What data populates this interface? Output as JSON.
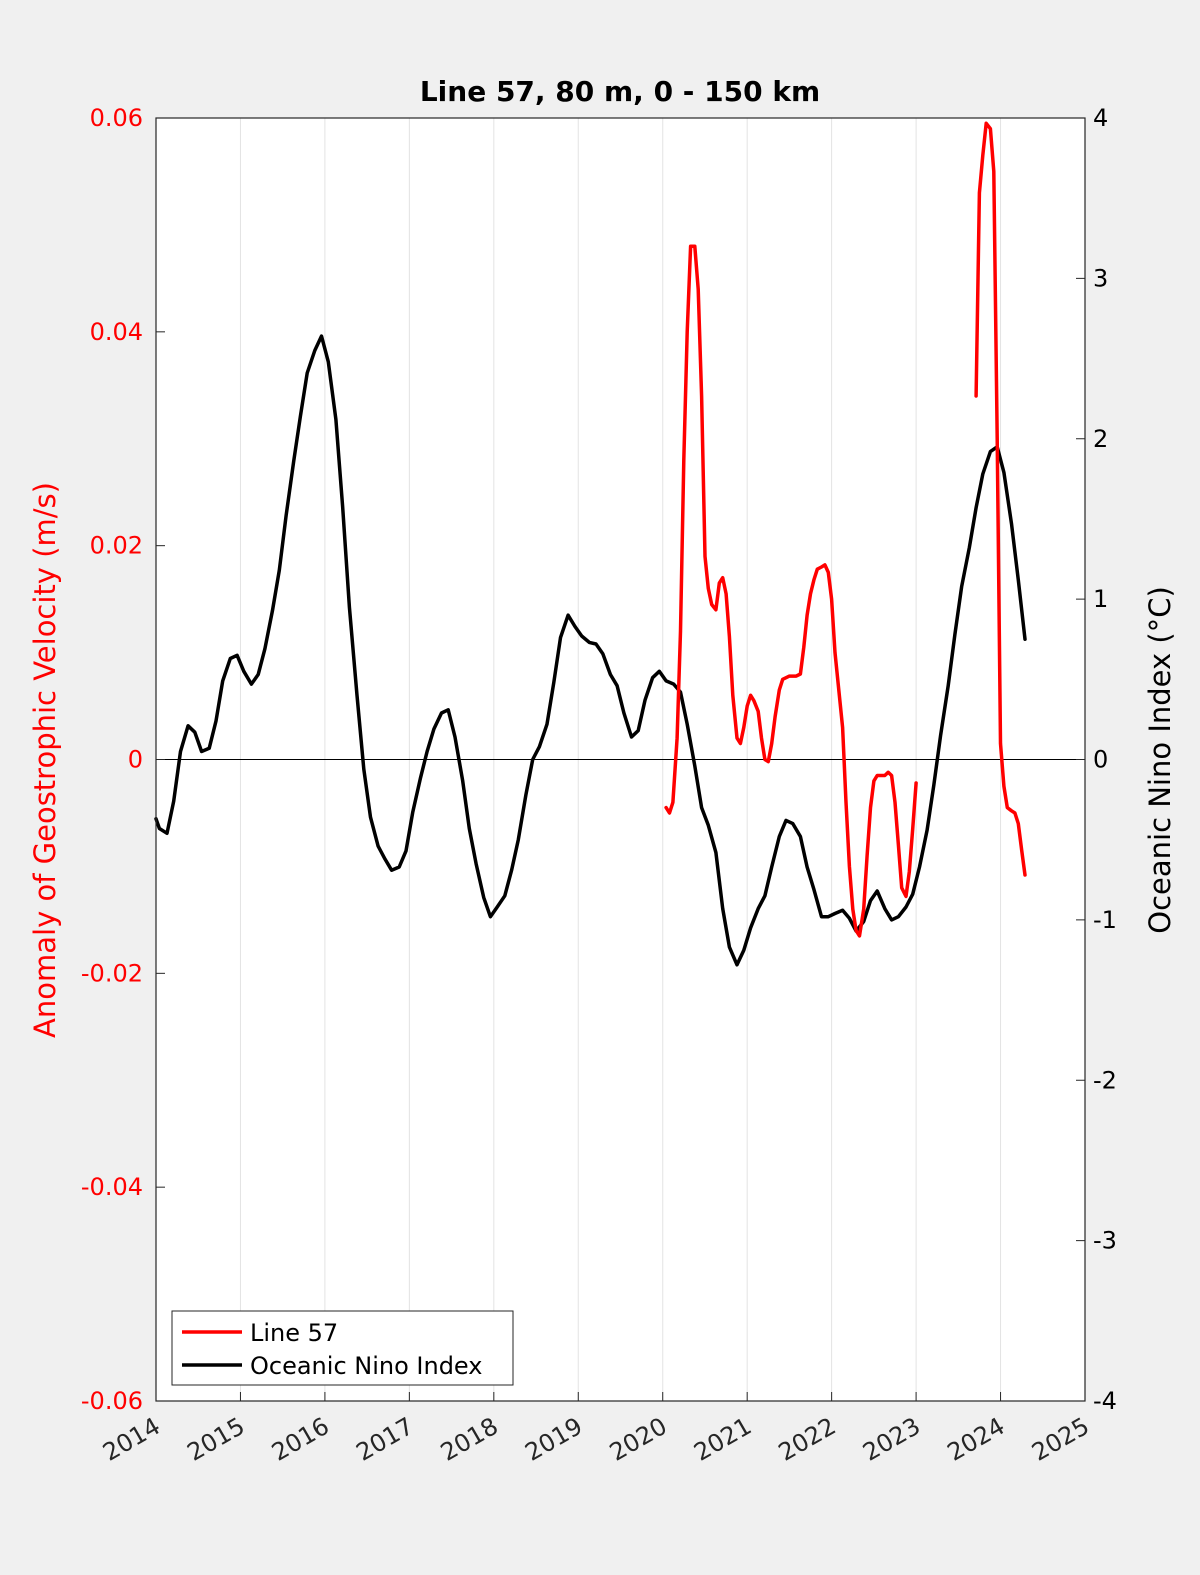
{
  "chart_data": {
    "type": "line",
    "title": "Line 57, 80 m, 0 - 150 km",
    "xlabel": "",
    "ylabel_left": "Anomaly of Geostrophic Velocity (m/s)",
    "ylabel_right": "Oceanic Nino Index (°C)",
    "xlim": [
      2014,
      2025
    ],
    "ylim_left": [
      -0.06,
      0.06
    ],
    "ylim_right": [
      -4,
      4
    ],
    "x_ticks": [
      "2014",
      "2015",
      "2016",
      "2017",
      "2018",
      "2019",
      "2020",
      "2021",
      "2022",
      "2023",
      "2024",
      "2025"
    ],
    "y_ticks_left": [
      "-0.06",
      "-0.04",
      "-0.02",
      "0",
      "0.02",
      "0.04",
      "0.06"
    ],
    "y_ticks_right": [
      "-4",
      "-3",
      "-2",
      "-1",
      "0",
      "1",
      "2",
      "3",
      "4"
    ],
    "grid": "vertical",
    "legend_position": "bottom-left",
    "colors": {
      "line57": "#ff0000",
      "oni": "#000000",
      "left_axis": "#ff0000",
      "right_axis": "#000000"
    },
    "series": [
      {
        "name": "Line 57",
        "axis": "left",
        "segments": [
          [
            [
              2020.04,
              -0.0045
            ],
            [
              2020.08,
              -0.005
            ],
            [
              2020.12,
              -0.004
            ],
            [
              2020.17,
              0.002
            ],
            [
              2020.21,
              0.012
            ],
            [
              2020.25,
              0.028
            ],
            [
              2020.29,
              0.04
            ],
            [
              2020.33,
              0.048
            ],
            [
              2020.38,
              0.048
            ],
            [
              2020.42,
              0.044
            ],
            [
              2020.46,
              0.034
            ],
            [
              2020.5,
              0.019
            ],
            [
              2020.54,
              0.016
            ],
            [
              2020.58,
              0.0145
            ],
            [
              2020.63,
              0.014
            ],
            [
              2020.67,
              0.0165
            ],
            [
              2020.71,
              0.017
            ],
            [
              2020.75,
              0.0155
            ],
            [
              2020.79,
              0.0115
            ],
            [
              2020.83,
              0.006
            ],
            [
              2020.88,
              0.002
            ],
            [
              2020.92,
              0.0015
            ],
            [
              2020.96,
              0.003
            ],
            [
              2021.0,
              0.005
            ],
            [
              2021.04,
              0.006
            ],
            [
              2021.08,
              0.0055
            ],
            [
              2021.13,
              0.0045
            ],
            [
              2021.17,
              0.002
            ],
            [
              2021.21,
              0.0
            ],
            [
              2021.25,
              -0.0002
            ],
            [
              2021.29,
              0.0015
            ],
            [
              2021.33,
              0.004
            ],
            [
              2021.38,
              0.0065
            ],
            [
              2021.42,
              0.0075
            ],
            [
              2021.5,
              0.0078
            ],
            [
              2021.58,
              0.0078
            ],
            [
              2021.63,
              0.008
            ],
            [
              2021.67,
              0.0105
            ],
            [
              2021.71,
              0.0135
            ],
            [
              2021.75,
              0.0155
            ],
            [
              2021.79,
              0.0168
            ],
            [
              2021.83,
              0.0178
            ],
            [
              2021.88,
              0.018
            ],
            [
              2021.92,
              0.0182
            ],
            [
              2021.96,
              0.0175
            ],
            [
              2022.0,
              0.015
            ],
            [
              2022.04,
              0.01
            ],
            [
              2022.13,
              0.003
            ],
            [
              2022.17,
              -0.004
            ],
            [
              2022.21,
              -0.01
            ],
            [
              2022.25,
              -0.014
            ],
            [
              2022.29,
              -0.016
            ],
            [
              2022.33,
              -0.0165
            ],
            [
              2022.38,
              -0.014
            ],
            [
              2022.42,
              -0.009
            ],
            [
              2022.46,
              -0.0045
            ],
            [
              2022.5,
              -0.002
            ],
            [
              2022.54,
              -0.0015
            ],
            [
              2022.63,
              -0.0015
            ],
            [
              2022.67,
              -0.0012
            ],
            [
              2022.71,
              -0.0015
            ],
            [
              2022.75,
              -0.004
            ],
            [
              2022.79,
              -0.008
            ],
            [
              2022.83,
              -0.012
            ],
            [
              2022.88,
              -0.0128
            ],
            [
              2022.92,
              -0.0105
            ],
            [
              2022.96,
              -0.0065
            ],
            [
              2023.0,
              -0.0022
            ]
          ],
          [
            [
              2023.71,
              0.034
            ],
            [
              2023.75,
              0.053
            ],
            [
              2023.79,
              0.0565
            ],
            [
              2023.83,
              0.0595
            ],
            [
              2023.88,
              0.059
            ],
            [
              2023.92,
              0.055
            ],
            [
              2023.96,
              0.03
            ],
            [
              2024.0,
              0.0015
            ],
            [
              2024.04,
              -0.0025
            ],
            [
              2024.08,
              -0.0045
            ],
            [
              2024.13,
              -0.0048
            ],
            [
              2024.17,
              -0.005
            ],
            [
              2024.21,
              -0.006
            ],
            [
              2024.25,
              -0.0085
            ],
            [
              2024.29,
              -0.0108
            ]
          ]
        ]
      },
      {
        "name": "Oceanic Nino Index",
        "axis": "right",
        "segments": [
          [
            [
              2014.0,
              -0.37
            ],
            [
              2014.04,
              -0.43
            ],
            [
              2014.13,
              -0.46
            ],
            [
              2014.21,
              -0.26
            ],
            [
              2014.29,
              0.05
            ],
            [
              2014.38,
              0.21
            ],
            [
              2014.46,
              0.17
            ],
            [
              2014.54,
              0.05
            ],
            [
              2014.63,
              0.07
            ],
            [
              2014.71,
              0.24
            ],
            [
              2014.79,
              0.49
            ],
            [
              2014.88,
              0.63
            ],
            [
              2014.96,
              0.65
            ],
            [
              2015.04,
              0.55
            ],
            [
              2015.13,
              0.47
            ],
            [
              2015.21,
              0.53
            ],
            [
              2015.29,
              0.69
            ],
            [
              2015.38,
              0.93
            ],
            [
              2015.46,
              1.18
            ],
            [
              2015.54,
              1.52
            ],
            [
              2015.63,
              1.86
            ],
            [
              2015.71,
              2.14
            ],
            [
              2015.79,
              2.41
            ],
            [
              2015.88,
              2.55
            ],
            [
              2015.96,
              2.64
            ],
            [
              2016.04,
              2.48
            ],
            [
              2016.13,
              2.12
            ],
            [
              2016.21,
              1.58
            ],
            [
              2016.29,
              0.95
            ],
            [
              2016.38,
              0.4
            ],
            [
              2016.46,
              -0.06
            ],
            [
              2016.54,
              -0.36
            ],
            [
              2016.63,
              -0.54
            ],
            [
              2016.71,
              -0.62
            ],
            [
              2016.79,
              -0.69
            ],
            [
              2016.88,
              -0.67
            ],
            [
              2016.96,
              -0.57
            ],
            [
              2017.04,
              -0.33
            ],
            [
              2017.13,
              -0.12
            ],
            [
              2017.21,
              0.05
            ],
            [
              2017.29,
              0.19
            ],
            [
              2017.38,
              0.29
            ],
            [
              2017.46,
              0.31
            ],
            [
              2017.54,
              0.14
            ],
            [
              2017.63,
              -0.13
            ],
            [
              2017.71,
              -0.43
            ],
            [
              2017.79,
              -0.65
            ],
            [
              2017.88,
              -0.86
            ],
            [
              2017.96,
              -0.98
            ],
            [
              2018.04,
              -0.92
            ],
            [
              2018.13,
              -0.85
            ],
            [
              2018.21,
              -0.69
            ],
            [
              2018.29,
              -0.5
            ],
            [
              2018.38,
              -0.22
            ],
            [
              2018.46,
              0.0
            ],
            [
              2018.54,
              0.08
            ],
            [
              2018.63,
              0.22
            ],
            [
              2018.71,
              0.48
            ],
            [
              2018.79,
              0.76
            ],
            [
              2018.88,
              0.9
            ],
            [
              2018.96,
              0.83
            ],
            [
              2019.04,
              0.77
            ],
            [
              2019.13,
              0.73
            ],
            [
              2019.21,
              0.72
            ],
            [
              2019.29,
              0.66
            ],
            [
              2019.38,
              0.53
            ],
            [
              2019.46,
              0.46
            ],
            [
              2019.54,
              0.29
            ],
            [
              2019.63,
              0.14
            ],
            [
              2019.71,
              0.18
            ],
            [
              2019.79,
              0.37
            ],
            [
              2019.88,
              0.51
            ],
            [
              2019.96,
              0.55
            ],
            [
              2020.04,
              0.49
            ],
            [
              2020.13,
              0.47
            ],
            [
              2020.21,
              0.42
            ],
            [
              2020.29,
              0.22
            ],
            [
              2020.38,
              -0.04
            ],
            [
              2020.46,
              -0.3
            ],
            [
              2020.54,
              -0.41
            ],
            [
              2020.63,
              -0.58
            ],
            [
              2020.71,
              -0.93
            ],
            [
              2020.79,
              -1.17
            ],
            [
              2020.88,
              -1.28
            ],
            [
              2020.96,
              -1.19
            ],
            [
              2021.04,
              -1.05
            ],
            [
              2021.13,
              -0.93
            ],
            [
              2021.21,
              -0.85
            ],
            [
              2021.29,
              -0.67
            ],
            [
              2021.38,
              -0.48
            ],
            [
              2021.46,
              -0.38
            ],
            [
              2021.54,
              -0.4
            ],
            [
              2021.63,
              -0.48
            ],
            [
              2021.71,
              -0.67
            ],
            [
              2021.79,
              -0.81
            ],
            [
              2021.88,
              -0.98
            ],
            [
              2021.96,
              -0.98
            ],
            [
              2022.04,
              -0.96
            ],
            [
              2022.13,
              -0.94
            ],
            [
              2022.21,
              -0.99
            ],
            [
              2022.29,
              -1.07
            ],
            [
              2022.38,
              -1.01
            ],
            [
              2022.46,
              -0.88
            ],
            [
              2022.54,
              -0.82
            ],
            [
              2022.63,
              -0.93
            ],
            [
              2022.71,
              -1.0
            ],
            [
              2022.79,
              -0.98
            ],
            [
              2022.88,
              -0.92
            ],
            [
              2022.96,
              -0.84
            ],
            [
              2023.04,
              -0.67
            ],
            [
              2023.13,
              -0.44
            ],
            [
              2023.21,
              -0.16
            ],
            [
              2023.29,
              0.15
            ],
            [
              2023.38,
              0.46
            ],
            [
              2023.46,
              0.78
            ],
            [
              2023.54,
              1.08
            ],
            [
              2023.63,
              1.32
            ],
            [
              2023.71,
              1.57
            ],
            [
              2023.79,
              1.78
            ],
            [
              2023.88,
              1.92
            ],
            [
              2023.96,
              1.95
            ],
            [
              2024.04,
              1.79
            ],
            [
              2024.13,
              1.47
            ],
            [
              2024.21,
              1.12
            ],
            [
              2024.29,
              0.75
            ]
          ]
        ]
      }
    ]
  }
}
